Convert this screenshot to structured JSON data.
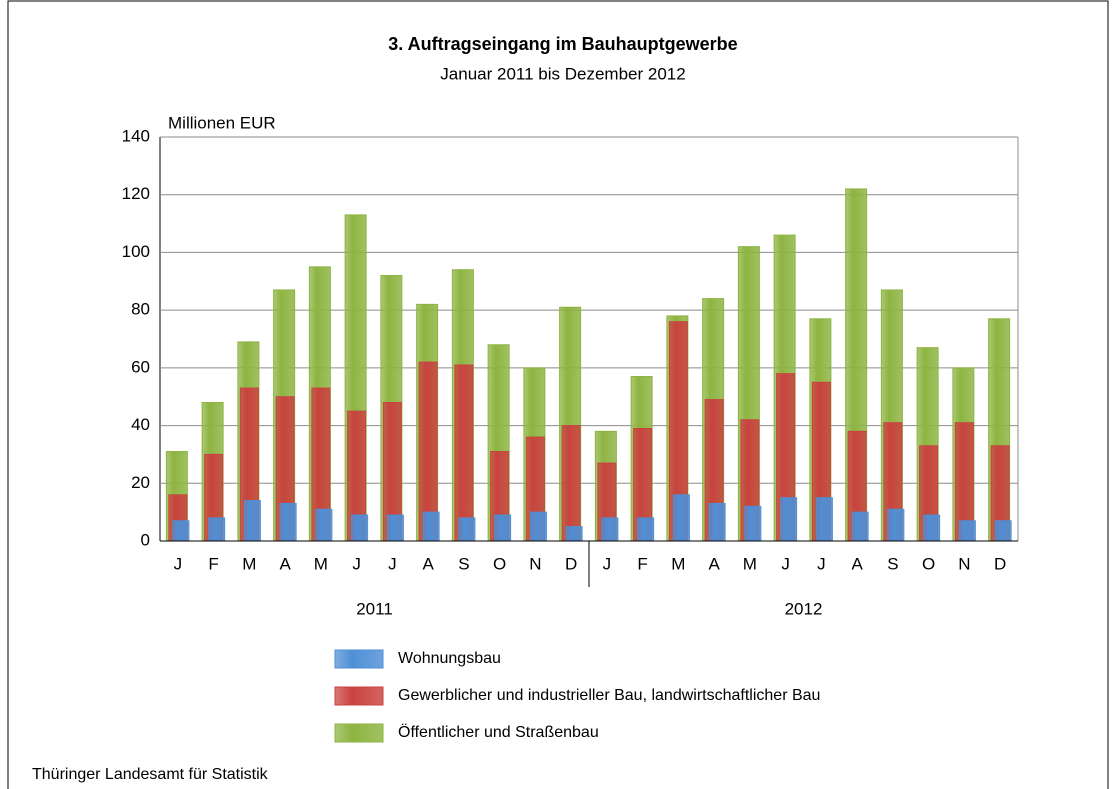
{
  "chart_data": {
    "type": "bar",
    "title": "3. Auftragseingang im Bauhauptgewerbe",
    "subtitle": "Januar 2011 bis Dezember 2012",
    "y_label": "Millionen EUR",
    "categories": [
      "J",
      "F",
      "M",
      "A",
      "M",
      "J",
      "J",
      "A",
      "S",
      "O",
      "N",
      "D",
      "J",
      "F",
      "M",
      "A",
      "M",
      "J",
      "J",
      "A",
      "S",
      "O",
      "N",
      "D"
    ],
    "year_labels": [
      "2011",
      "2012"
    ],
    "series": [
      {
        "name": "Wohnungsbau",
        "color": "#4f8fd6",
        "values": [
          7,
          8,
          14,
          13,
          11,
          9,
          9,
          10,
          8,
          9,
          10,
          5,
          8,
          8,
          16,
          13,
          12,
          15,
          15,
          10,
          11,
          9,
          7,
          7
        ]
      },
      {
        "name": "Gewerblicher und industrieller Bau, landwirtschaftlicher Bau",
        "color": "#c9433f",
        "values": [
          16,
          30,
          53,
          50,
          53,
          45,
          48,
          62,
          61,
          31,
          36,
          40,
          27,
          39,
          76,
          49,
          42,
          58,
          55,
          38,
          41,
          33,
          41,
          33
        ]
      },
      {
        "name": "Öffentlicher und Straßenbau",
        "color": "#8db441",
        "values": [
          31,
          48,
          69,
          87,
          95,
          113,
          92,
          82,
          94,
          68,
          60,
          81,
          38,
          57,
          78,
          84,
          102,
          106,
          77,
          122,
          87,
          67,
          60,
          77
        ]
      }
    ],
    "ylim": [
      0,
      140
    ],
    "yticks": [
      0,
      20,
      40,
      60,
      80,
      100,
      120,
      140
    ],
    "grid": true,
    "source": "Thüringer Landesamt für Statistik"
  }
}
